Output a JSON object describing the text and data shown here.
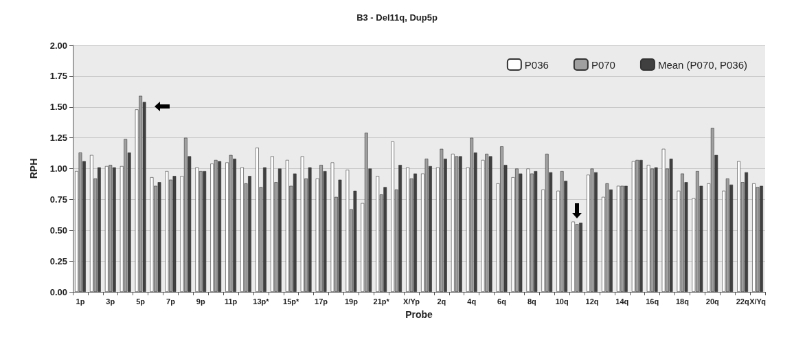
{
  "chart_data": {
    "type": "bar",
    "title": "B3 - Del11q, Dup5p",
    "xlabel": "Probe",
    "ylabel": "RPH",
    "categories": [
      "1p",
      null,
      "3p",
      null,
      "5p",
      null,
      "7p",
      null,
      "9p",
      null,
      "11p",
      null,
      "13p*",
      null,
      "15p*",
      null,
      "17p",
      null,
      "19p",
      null,
      "21p*",
      null,
      "X/Yp",
      null,
      "2q",
      null,
      "4q",
      null,
      "6q",
      null,
      "8q",
      null,
      "10q",
      null,
      "12q",
      null,
      "14q",
      null,
      "16q",
      null,
      "18q",
      null,
      "20q",
      null,
      "22q",
      "X/Yq"
    ],
    "series": [
      {
        "name": "P036",
        "color": "#ffffff",
        "values": [
          0.98,
          1.11,
          1.02,
          1.02,
          1.48,
          0.93,
          0.98,
          0.94,
          1.01,
          1.04,
          1.05,
          1.01,
          1.17,
          1.1,
          1.07,
          1.1,
          0.92,
          1.05,
          0.99,
          0.72,
          0.94,
          1.22,
          1.01,
          0.96,
          1.01,
          1.12,
          1.01,
          1.07,
          0.88,
          0.93,
          1.0,
          0.83,
          0.82,
          0.57,
          0.95,
          0.77,
          0.86,
          1.06,
          1.03,
          1.16,
          0.82,
          0.76,
          0.88,
          0.82,
          1.06,
          0.88
        ]
      },
      {
        "name": "P070",
        "color": "#a0a0a0",
        "values": [
          1.13,
          0.92,
          1.03,
          1.24,
          1.59,
          0.86,
          0.91,
          1.25,
          0.98,
          1.07,
          1.11,
          0.88,
          0.85,
          0.89,
          0.86,
          0.92,
          1.03,
          0.77,
          0.67,
          1.29,
          0.79,
          0.83,
          0.92,
          1.08,
          1.16,
          1.1,
          1.25,
          1.12,
          1.18,
          1.0,
          0.96,
          1.12,
          0.98,
          0.55,
          1.0,
          0.88,
          0.86,
          1.07,
          1.0,
          1.0,
          0.96,
          0.98,
          1.33,
          0.92,
          0.89,
          0.85
        ]
      },
      {
        "name": "Mean (P070, P036)",
        "color": "#404040",
        "values": [
          1.06,
          1.01,
          1.01,
          1.13,
          1.54,
          0.89,
          0.94,
          1.1,
          0.98,
          1.06,
          1.08,
          0.94,
          1.01,
          1.0,
          0.96,
          1.01,
          0.98,
          0.91,
          0.82,
          1.0,
          0.85,
          1.03,
          0.96,
          1.02,
          1.08,
          1.1,
          1.13,
          1.1,
          1.03,
          0.96,
          0.98,
          0.97,
          0.9,
          0.56,
          0.97,
          0.83,
          0.86,
          1.07,
          1.01,
          1.08,
          0.89,
          0.86,
          1.11,
          0.87,
          0.97,
          0.86
        ]
      }
    ],
    "ylim": [
      0,
      2
    ],
    "yticks": [
      {
        "value": 0,
        "label": "0.00"
      },
      {
        "value": 0.25,
        "label": "0.25"
      },
      {
        "value": 0.5,
        "label": "0.50"
      },
      {
        "value": 0.75,
        "label": "0.75"
      },
      {
        "value": 1,
        "label": "1.00"
      },
      {
        "value": 1.25,
        "label": "1.25"
      },
      {
        "value": 1.5,
        "label": "1.50"
      },
      {
        "value": 1.75,
        "label": "1.75"
      },
      {
        "value": 2,
        "label": "2.00"
      }
    ],
    "grid": "y",
    "legend": "top right"
  }
}
